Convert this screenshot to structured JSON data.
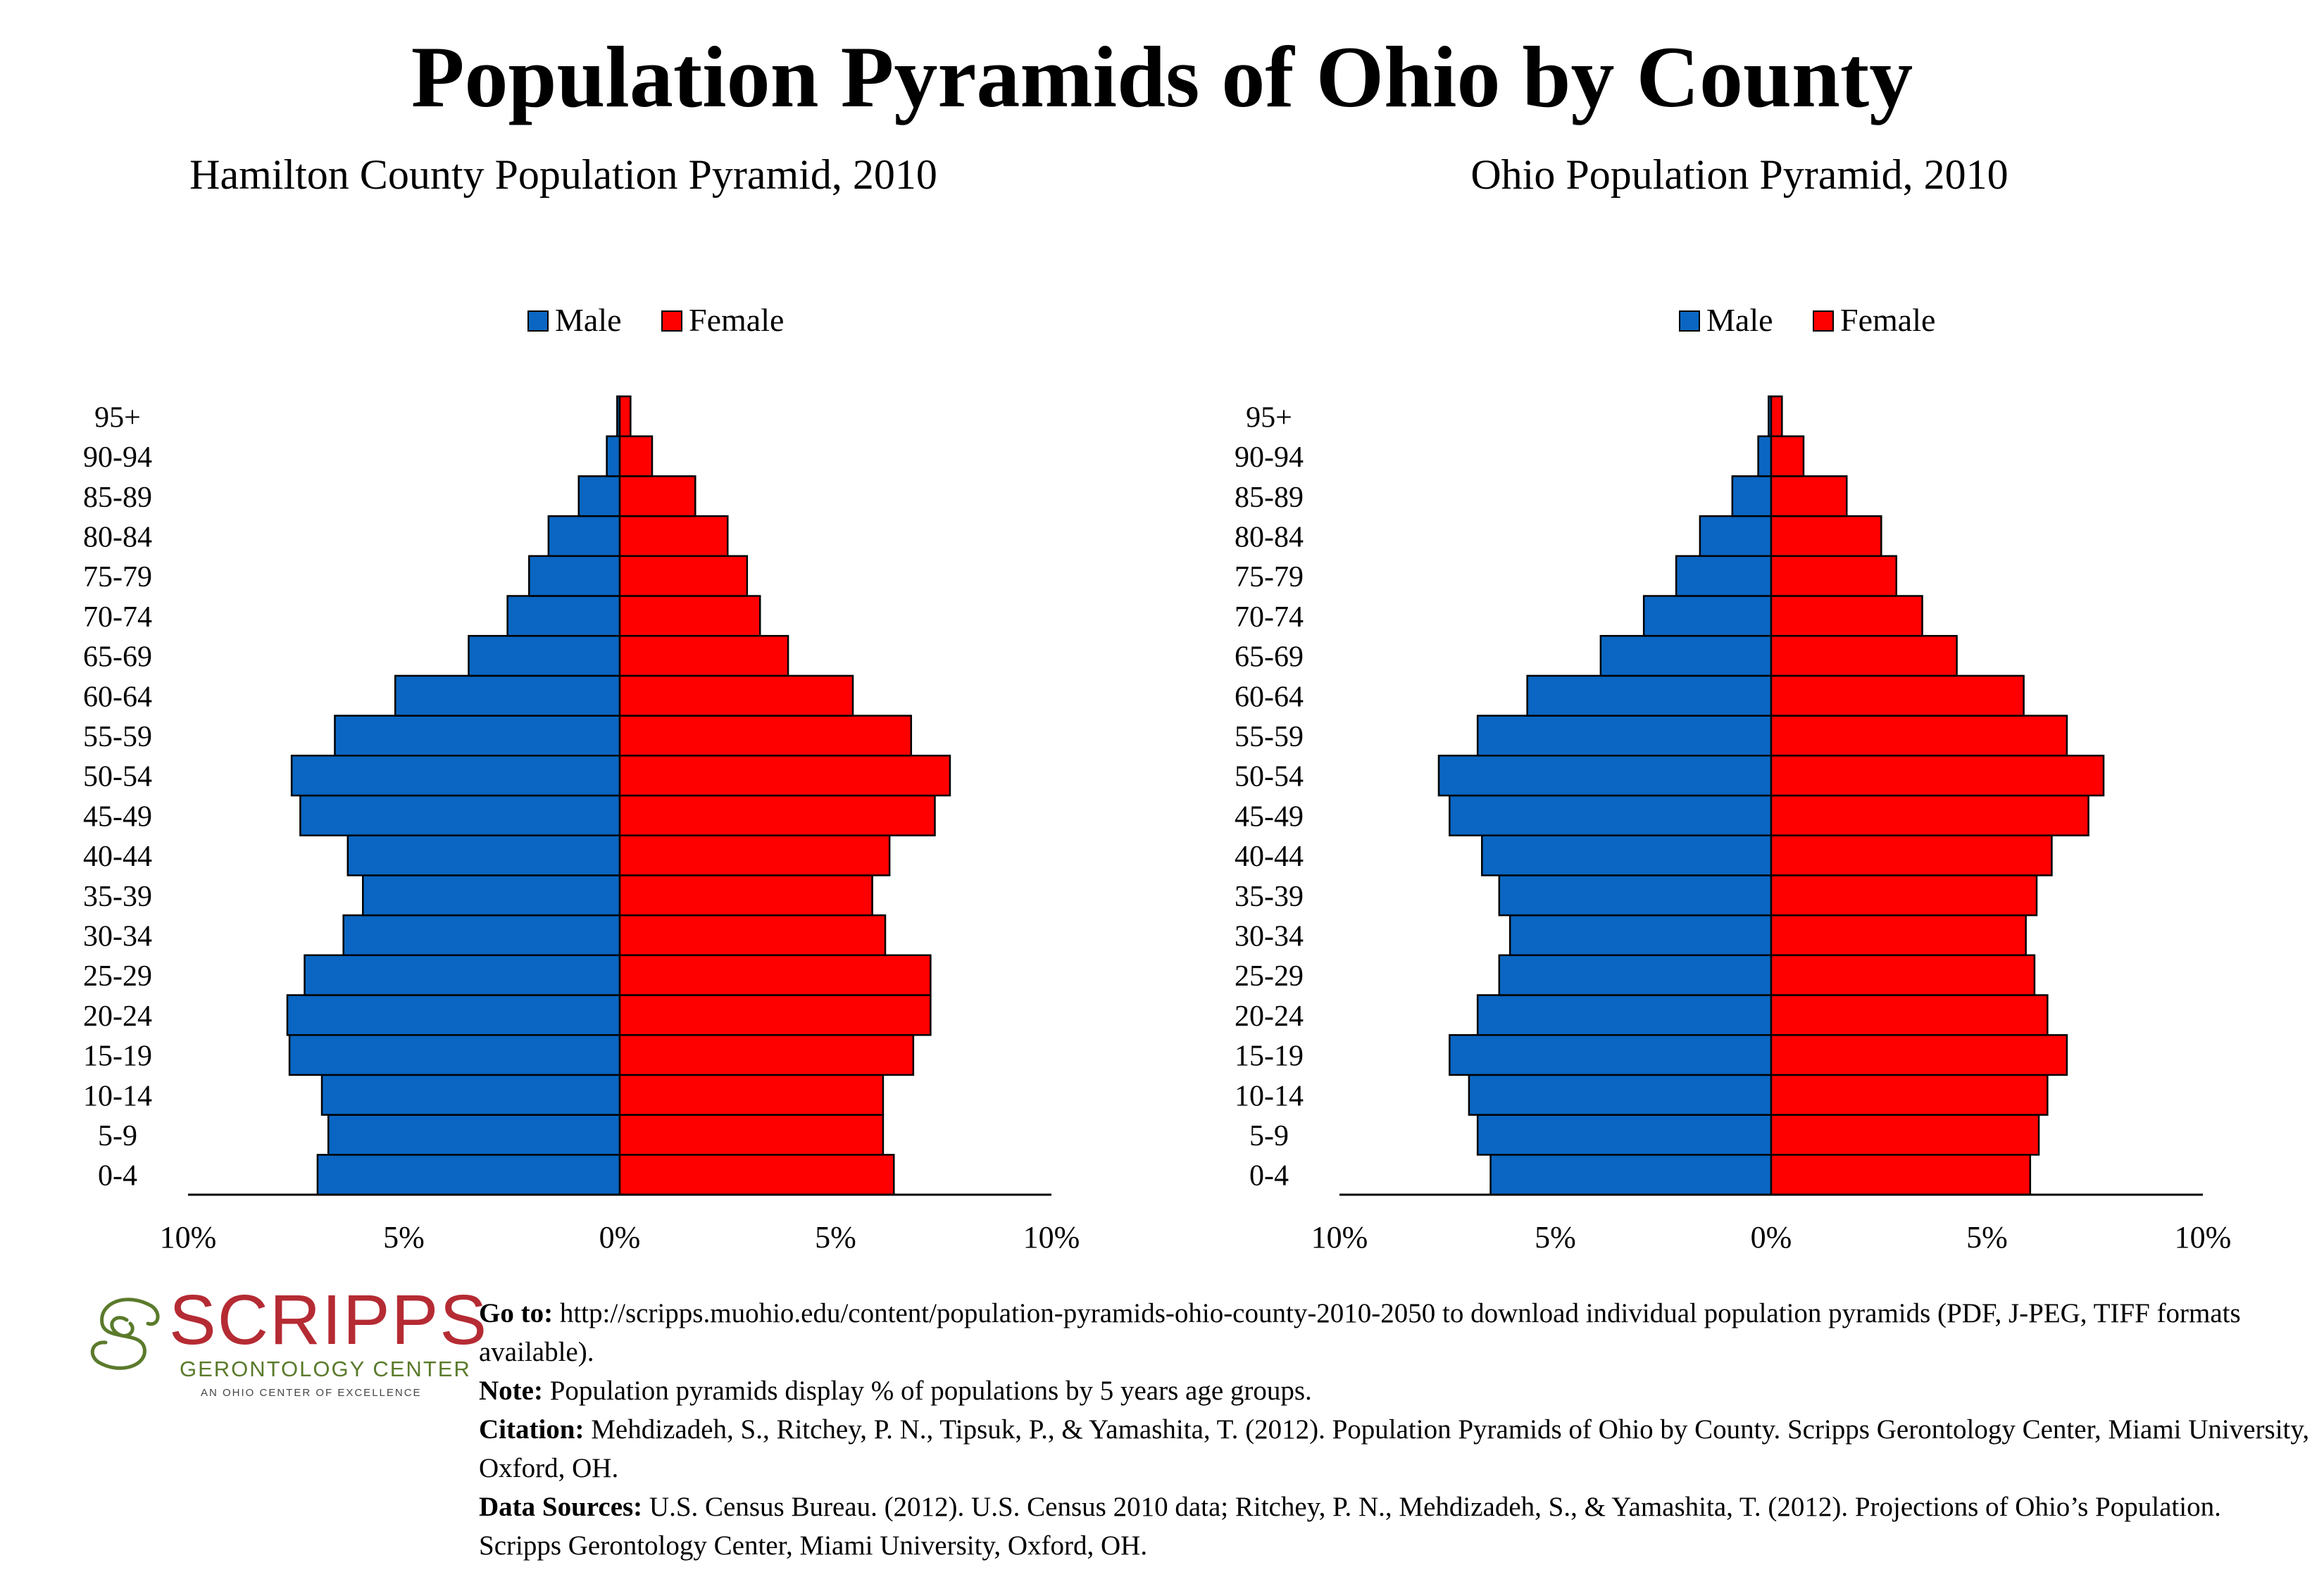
{
  "title": "Population Pyramids of Ohio by County",
  "colors": {
    "male": "#0a66c2",
    "female": "#ff0000",
    "stroke": "#000000"
  },
  "chart_data": [
    {
      "type": "bar",
      "orientation": "horizontal-pyramid",
      "title": "Hamilton County Population Pyramid, 2010",
      "legend": "top-center",
      "categories": [
        "0-4",
        "5-9",
        "10-14",
        "15-19",
        "20-24",
        "25-29",
        "30-34",
        "35-39",
        "40-44",
        "45-49",
        "50-54",
        "55-59",
        "60-64",
        "65-69",
        "70-74",
        "75-79",
        "80-84",
        "85-89",
        "90-94",
        "95+"
      ],
      "series": [
        {
          "name": "Male",
          "values": [
            7.0,
            6.75,
            6.9,
            7.65,
            7.7,
            7.3,
            6.4,
            5.95,
            6.3,
            7.4,
            7.6,
            6.6,
            5.2,
            3.5,
            2.6,
            2.1,
            1.65,
            0.95,
            0.3,
            0.06
          ]
        },
        {
          "name": "Female",
          "values": [
            6.35,
            6.1,
            6.1,
            6.8,
            7.2,
            7.2,
            6.15,
            5.85,
            6.25,
            7.3,
            7.65,
            6.75,
            5.4,
            3.9,
            3.25,
            2.95,
            2.5,
            1.75,
            0.75,
            0.25
          ]
        }
      ],
      "xlim": [
        -10,
        10
      ],
      "xticks": [
        "10%",
        "5%",
        "0%",
        "5%",
        "10%"
      ]
    },
    {
      "type": "bar",
      "orientation": "horizontal-pyramid",
      "title": "Ohio Population Pyramid, 2010",
      "legend": "top-center",
      "categories": [
        "0-4",
        "5-9",
        "10-14",
        "15-19",
        "20-24",
        "25-29",
        "30-34",
        "35-39",
        "40-44",
        "45-49",
        "50-54",
        "55-59",
        "60-64",
        "65-69",
        "70-74",
        "75-79",
        "80-84",
        "85-89",
        "90-94",
        "95+"
      ],
      "series": [
        {
          "name": "Male",
          "values": [
            6.5,
            6.8,
            7.0,
            7.45,
            6.8,
            6.3,
            6.05,
            6.3,
            6.7,
            7.45,
            7.7,
            6.8,
            5.65,
            3.95,
            2.95,
            2.2,
            1.65,
            0.9,
            0.3,
            0.06
          ]
        },
        {
          "name": "Female",
          "values": [
            6.0,
            6.2,
            6.4,
            6.85,
            6.4,
            6.1,
            5.9,
            6.15,
            6.5,
            7.35,
            7.7,
            6.85,
            5.85,
            4.3,
            3.5,
            2.9,
            2.55,
            1.75,
            0.75,
            0.25
          ]
        }
      ],
      "xlim": [
        -10,
        10
      ],
      "xticks": [
        "10%",
        "5%",
        "0%",
        "5%",
        "10%"
      ]
    }
  ],
  "logo": {
    "word": "SCRIPPS",
    "subtitle": "GERONTOLOGY CENTER",
    "tagline": "AN OHIO CENTER OF EXCELLENCE",
    "icon": "scripps-swirl-icon"
  },
  "footer": {
    "goto_label": "Go to:",
    "goto_text": "http://scripps.muohio.edu/content/population-pyramids-ohio-county-2010-2050 to download individual population pyramids (PDF, J-PEG, TIFF formats available).",
    "note_label": "Note:",
    "note_text": "Population pyramids display % of populations by 5 years age groups.",
    "citation_label": "Citation:",
    "citation_text": "Mehdizadeh, S., Ritchey, P. N., Tipsuk, P., & Yamashita, T. (2012). Population Pyramids of Ohio by County. Scripps Gerontology Center, Miami University, Oxford, OH.",
    "sources_label": "Data Sources:",
    "sources_text": "U.S. Census Bureau. (2012). U.S. Census 2010 data; Ritchey, P. N., Mehdizadeh, S., & Yamashita, T. (2012). Projections of Ohio’s Population. Scripps Gerontology Center, Miami University, Oxford, OH."
  }
}
